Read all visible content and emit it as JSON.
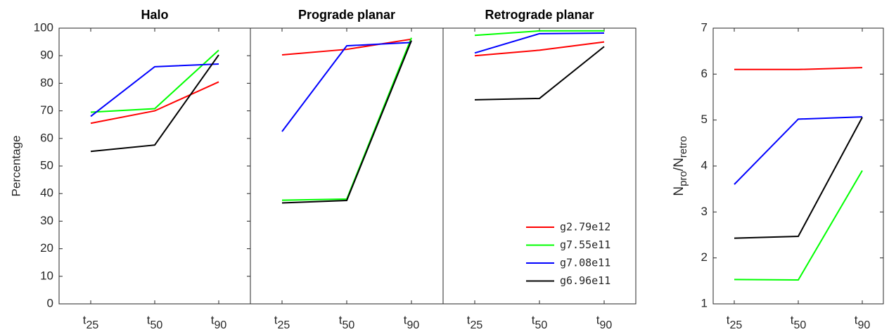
{
  "chart_data": [
    {
      "type": "line",
      "title": "Halo",
      "ylabel": "Percentage",
      "categories": [
        "t25",
        "t50",
        "t90"
      ],
      "ylim": [
        0,
        100
      ],
      "yticks": [
        0,
        10,
        20,
        30,
        40,
        50,
        60,
        70,
        80,
        90,
        100
      ],
      "series": [
        {
          "color": "#ff0000",
          "values": [
            65.5,
            70,
            80.5
          ]
        },
        {
          "color": "#00ff00",
          "values": [
            69.5,
            70.8,
            92
          ]
        },
        {
          "color": "#0000ff",
          "values": [
            68,
            86,
            87
          ]
        },
        {
          "color": "#000000",
          "values": [
            55.3,
            57.6,
            90.3
          ]
        }
      ]
    },
    {
      "type": "line",
      "title": "Prograde planar",
      "categories": [
        "t25",
        "t50",
        "t90"
      ],
      "ylim": [
        0,
        100
      ],
      "series": [
        {
          "color": "#ff0000",
          "values": [
            90.3,
            92.3,
            96
          ]
        },
        {
          "color": "#00ff00",
          "values": [
            37.6,
            38,
            96.5
          ]
        },
        {
          "color": "#0000ff",
          "values": [
            62.5,
            93.6,
            94.8
          ]
        },
        {
          "color": "#000000",
          "values": [
            36.6,
            37.5,
            95.5
          ]
        }
      ]
    },
    {
      "type": "line",
      "title": "Retrograde planar",
      "categories": [
        "t25",
        "t50",
        "t90"
      ],
      "ylim": [
        0,
        100
      ],
      "legend": "lower right",
      "series": [
        {
          "name": "g2.79e12",
          "color": "#ff0000",
          "values": [
            90,
            92,
            95
          ]
        },
        {
          "name": "g7.55e11",
          "color": "#00ff00",
          "values": [
            97.4,
            99,
            99
          ]
        },
        {
          "name": "g7.08e11",
          "color": "#0000ff",
          "values": [
            91,
            98,
            98.2
          ]
        },
        {
          "name": "g6.96e11",
          "color": "#000000",
          "values": [
            74,
            74.5,
            93.3
          ]
        }
      ]
    },
    {
      "type": "line",
      "ylabel": [
        "N",
        "pro",
        "/N",
        "retro"
      ],
      "categories": [
        "t25",
        "t50",
        "t90"
      ],
      "ylim": [
        1,
        7
      ],
      "yticks": [
        1,
        2,
        3,
        4,
        5,
        6,
        7
      ],
      "series": [
        {
          "color": "#ff0000",
          "values": [
            6.1,
            6.1,
            6.14
          ]
        },
        {
          "color": "#00ff00",
          "values": [
            1.53,
            1.52,
            3.9
          ]
        },
        {
          "color": "#0000ff",
          "values": [
            3.6,
            5.02,
            5.07
          ]
        },
        {
          "color": "#000000",
          "values": [
            2.43,
            2.47,
            5.06
          ]
        }
      ]
    }
  ]
}
